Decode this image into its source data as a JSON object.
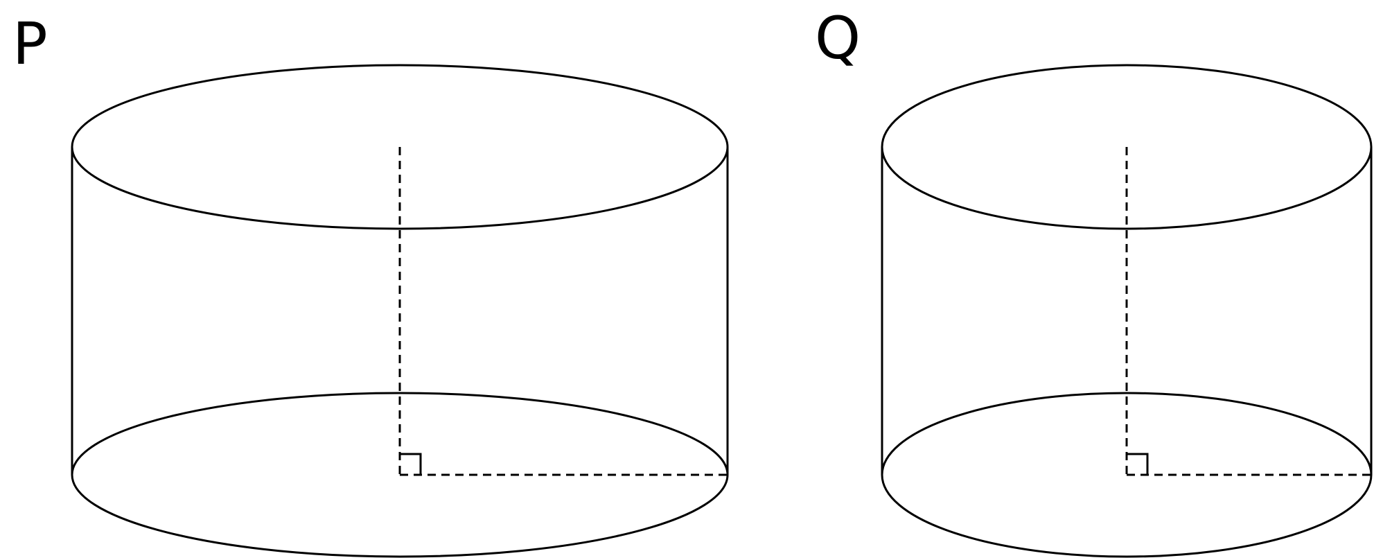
{
  "labels": {
    "left_cylinder": "P",
    "right_cylinder": "Q"
  },
  "colors": {
    "stroke": "#000000",
    "background": "#ffffff"
  }
}
